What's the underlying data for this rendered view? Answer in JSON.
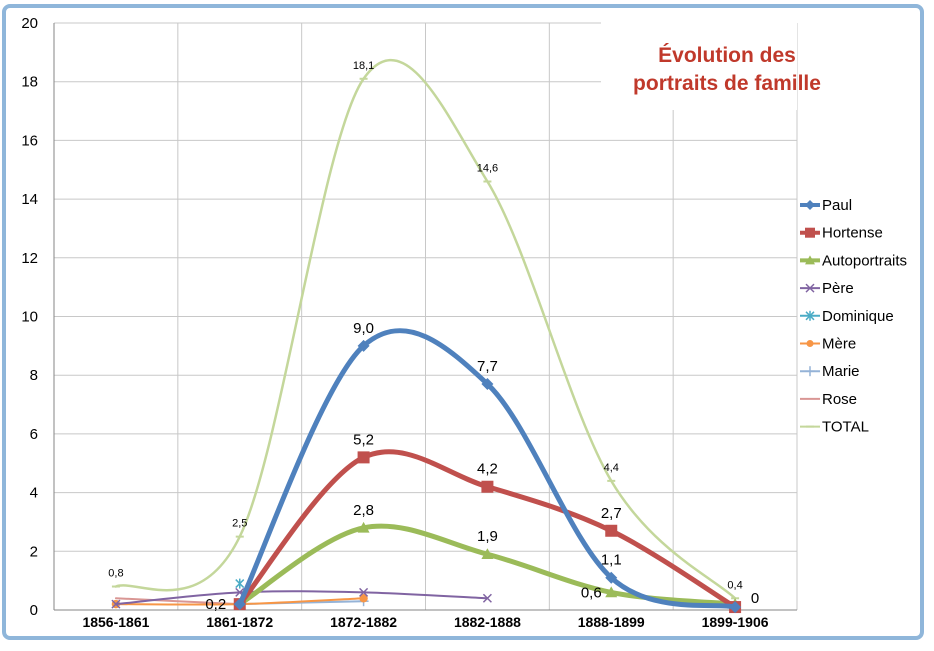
{
  "chart_data": {
    "type": "line",
    "title": "Évolution des portraits de famille",
    "title_lines": [
      "Évolution des",
      "portraits de famille"
    ],
    "categories": [
      "1856-1861",
      "1861-1872",
      "1872-1882",
      "1882-1888",
      "1888-1899",
      "1899-1906"
    ],
    "ylim": [
      0,
      20
    ],
    "yticks": [
      0,
      2,
      4,
      6,
      8,
      10,
      12,
      14,
      16,
      18,
      20
    ],
    "grid": true,
    "legend_position": "right",
    "series": [
      {
        "name": "Paul",
        "color": "#4f81bd",
        "marker": "diamond",
        "values": [
          null,
          0.2,
          9.0,
          7.7,
          1.1,
          0.1
        ]
      },
      {
        "name": "Hortense",
        "color": "#c0504d",
        "marker": "square",
        "values": [
          null,
          0.2,
          5.2,
          4.2,
          2.7,
          0.1
        ]
      },
      {
        "name": "Autoportraits",
        "color": "#9bbb59",
        "marker": "triangle",
        "values": [
          null,
          0.2,
          2.8,
          1.9,
          0.6,
          0.2
        ]
      },
      {
        "name": "Père",
        "color": "#8064a2",
        "marker": "x",
        "values": [
          0.2,
          0.6,
          0.6,
          0.4,
          null,
          null
        ]
      },
      {
        "name": "Dominique",
        "color": "#4bacc6",
        "marker": "star",
        "values": [
          null,
          0.9,
          null,
          null,
          null,
          null
        ]
      },
      {
        "name": "Mère",
        "color": "#f79646",
        "marker": "circle",
        "values": [
          0.2,
          0.2,
          0.4,
          null,
          null,
          null
        ]
      },
      {
        "name": "Marie",
        "color": "#95b3d7",
        "marker": "plus",
        "values": [
          null,
          0.2,
          0.3,
          null,
          null,
          null
        ]
      },
      {
        "name": "Rose",
        "color": "#d99694",
        "marker": "none",
        "values": [
          0.4,
          0.2,
          null,
          null,
          null,
          null
        ]
      },
      {
        "name": "TOTAL",
        "color": "#c4d79b",
        "marker": "bar",
        "values": [
          0.8,
          2.5,
          18.1,
          14.6,
          4.4,
          0.4
        ]
      }
    ],
    "data_labels": [
      {
        "series": "TOTAL",
        "text": [
          "0,8",
          "2,5",
          "18,1",
          "14,6",
          "4,4",
          "0,4"
        ]
      },
      {
        "series": "Paul",
        "text": [
          "",
          "",
          "9,0",
          "7,7",
          "1,1",
          "0"
        ]
      },
      {
        "series": "Hortense",
        "text": [
          "",
          "0,2",
          "5,2",
          "4,2",
          "2,7",
          ""
        ]
      },
      {
        "series": "Autoportraits",
        "text": [
          "",
          "",
          "2,8",
          "1,9",
          "0,6",
          ""
        ]
      }
    ]
  }
}
